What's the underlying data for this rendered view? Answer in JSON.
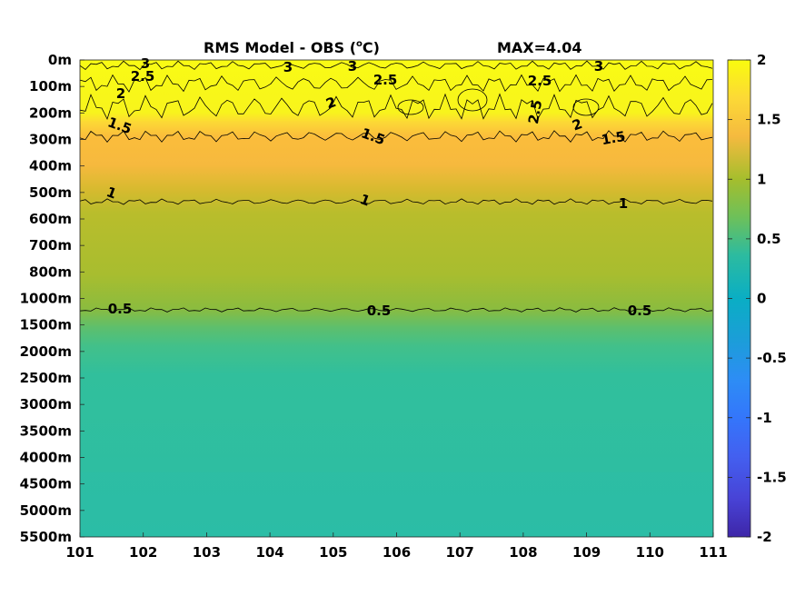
{
  "chart_data": {
    "type": "heatmap",
    "title_main": "RMS Model - OBS (",
    "title_degree": "o",
    "title_unit": "C)",
    "max_label": "MAX=4.04",
    "x_ticks": [
      "101",
      "102",
      "103",
      "104",
      "105",
      "106",
      "107",
      "108",
      "109",
      "110",
      "111"
    ],
    "y_ticks": [
      "0m",
      "100m",
      "200m",
      "300m",
      "400m",
      "500m",
      "600m",
      "700m",
      "800m",
      "1000m",
      "1500m",
      "2000m",
      "2500m",
      "3000m",
      "3500m",
      "4000m",
      "4500m",
      "5000m",
      "5500m"
    ],
    "colorbar": {
      "ticks": [
        "2",
        "1.5",
        "1",
        "0.5",
        "0",
        "-0.5",
        "-1",
        "-1.5",
        "-2"
      ],
      "range": [
        -2,
        2
      ],
      "colormap": "parula"
    },
    "depth_profile": [
      {
        "depth": "0m",
        "value": 2.6
      },
      {
        "depth": "100m",
        "value": 2.2
      },
      {
        "depth": "200m",
        "value": 1.9
      },
      {
        "depth": "300m",
        "value": 1.45
      },
      {
        "depth": "400m",
        "value": 1.3
      },
      {
        "depth": "500m",
        "value": 1.05
      },
      {
        "depth": "600m",
        "value": 0.92
      },
      {
        "depth": "700m",
        "value": 0.85
      },
      {
        "depth": "800m",
        "value": 0.75
      },
      {
        "depth": "1000m",
        "value": 0.6
      },
      {
        "depth": "1500m",
        "value": 0.45
      },
      {
        "depth": "2000m",
        "value": 0.38
      },
      {
        "depth": "2500m",
        "value": 0.35
      },
      {
        "depth": "3000m",
        "value": 0.34
      },
      {
        "depth": "5500m",
        "value": 0.33
      }
    ],
    "contours": [
      {
        "level": "3",
        "labels": [
          "3",
          "3",
          "3",
          "3"
        ]
      },
      {
        "level": "2.5",
        "labels": [
          "2.5",
          "2.5",
          "2.5",
          "2.5"
        ]
      },
      {
        "level": "2",
        "labels": [
          "2",
          "2",
          "2"
        ]
      },
      {
        "level": "1.5",
        "labels": [
          "1.5",
          "1.5",
          "1.5"
        ]
      },
      {
        "level": "1",
        "labels": [
          "1",
          "1",
          "1"
        ]
      },
      {
        "level": "0.5",
        "labels": [
          "0.5",
          "0.5",
          "0.5"
        ]
      }
    ]
  }
}
